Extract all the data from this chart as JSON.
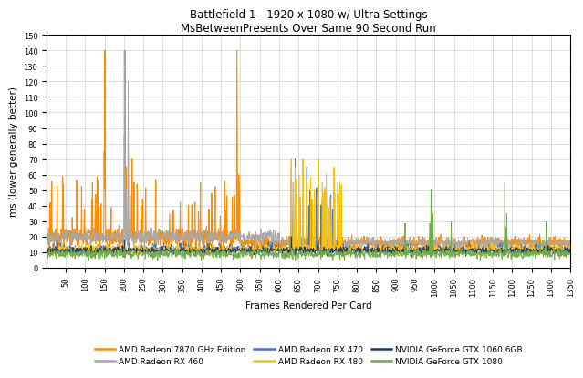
{
  "title_line1": "Battlefield 1 - 1920 x 1080 w/ Ultra Settings",
  "title_line2": "MsBetweenPresents Over Same 90 Second Run",
  "xlabel": "Frames Rendered Per Card",
  "ylabel": "ms (lower generally better)",
  "ylim": [
    0,
    150
  ],
  "yticks": [
    0,
    10,
    20,
    30,
    40,
    50,
    60,
    70,
    80,
    90,
    100,
    110,
    120,
    130,
    140,
    150
  ],
  "n_frames": 1350,
  "series": [
    {
      "label": "AMD Radeon 7870 GHz Edition",
      "color": "#FF8C00"
    },
    {
      "label": "AMD Radeon RX 460",
      "color": "#A8A8A8"
    },
    {
      "label": "AMD Radeon RX 470",
      "color": "#4472C4"
    },
    {
      "label": "AMD Radeon RX 480",
      "color": "#FFC000"
    },
    {
      "label": "NVIDIA GeForce GTX 1060 6GB",
      "color": "#203864"
    },
    {
      "label": "NVIDIA GeForce GTX 1080",
      "color": "#70AD47"
    }
  ],
  "background_color": "#FFFFFF",
  "grid_color": "#D0D0D0",
  "title_fontsize": 8.5,
  "label_fontsize": 7.5,
  "tick_fontsize": 6,
  "legend_fontsize": 6.5
}
